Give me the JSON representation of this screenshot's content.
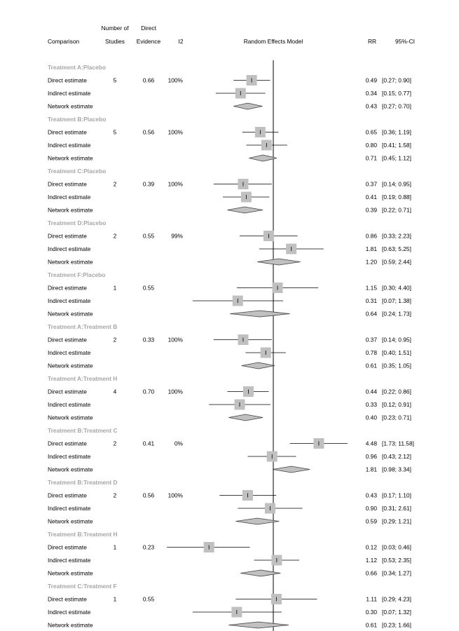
{
  "chart_data": {
    "type": "forest",
    "title": "",
    "header": {
      "comparison": "Comparison",
      "studies": [
        "Number of",
        "Studies"
      ],
      "direct": [
        "Direct",
        "Evidence"
      ],
      "i2": "I2",
      "model": "Random Effects Model",
      "rr": "RR",
      "ci": "95%-CI"
    },
    "reference_line": 1,
    "x_scale": "log",
    "colors": {
      "square": "#c0c0c0",
      "diamond": "#c0c0c0",
      "group_label": "#a6a6a6"
    },
    "groups": [
      {
        "label": "Treatment A:Placebo",
        "studies": "5",
        "direct_evidence": "0.66",
        "i2": "100%",
        "rows": [
          {
            "label": "Direct estimate",
            "kind": "direct",
            "rr": 0.49,
            "lo": 0.27,
            "hi": 0.9,
            "rr_text": "0.49",
            "ci_text": "[0.27; 0.90]"
          },
          {
            "label": "Indirect estimate",
            "kind": "indirect",
            "rr": 0.34,
            "lo": 0.15,
            "hi": 0.77,
            "rr_text": "0.34",
            "ci_text": "[0.15; 0.77]"
          },
          {
            "label": "Network estimate",
            "kind": "network",
            "rr": 0.43,
            "lo": 0.27,
            "hi": 0.7,
            "rr_text": "0.43",
            "ci_text": "[0.27; 0.70]"
          }
        ]
      },
      {
        "label": "Treatment B:Placebo",
        "studies": "5",
        "direct_evidence": "0.56",
        "i2": "100%",
        "rows": [
          {
            "label": "Direct estimate",
            "kind": "direct",
            "rr": 0.65,
            "lo": 0.36,
            "hi": 1.19,
            "rr_text": "0.65",
            "ci_text": "[0.36; 1.19]"
          },
          {
            "label": "Indirect estimate",
            "kind": "indirect",
            "rr": 0.8,
            "lo": 0.41,
            "hi": 1.58,
            "rr_text": "0.80",
            "ci_text": "[0.41; 1.58]"
          },
          {
            "label": "Network estimate",
            "kind": "network",
            "rr": 0.71,
            "lo": 0.45,
            "hi": 1.12,
            "rr_text": "0.71",
            "ci_text": "[0.45; 1.12]"
          }
        ]
      },
      {
        "label": "Treatment C:Placebo",
        "studies": "2",
        "direct_evidence": "0.39",
        "i2": "100%",
        "rows": [
          {
            "label": "Direct estimate",
            "kind": "direct",
            "rr": 0.37,
            "lo": 0.14,
            "hi": 0.95,
            "rr_text": "0.37",
            "ci_text": "[0.14; 0.95]"
          },
          {
            "label": "Indirect estimate",
            "kind": "indirect",
            "rr": 0.41,
            "lo": 0.19,
            "hi": 0.88,
            "rr_text": "0.41",
            "ci_text": "[0.19; 0.88]"
          },
          {
            "label": "Network estimate",
            "kind": "network",
            "rr": 0.39,
            "lo": 0.22,
            "hi": 0.71,
            "rr_text": "0.39",
            "ci_text": "[0.22; 0.71]"
          }
        ]
      },
      {
        "label": "Treatment D:Placebo",
        "studies": "2",
        "direct_evidence": "0.55",
        "i2": "99%",
        "rows": [
          {
            "label": "Direct estimate",
            "kind": "direct",
            "rr": 0.86,
            "lo": 0.33,
            "hi": 2.23,
            "rr_text": "0.86",
            "ci_text": "[0.33; 2.23]"
          },
          {
            "label": "Indirect estimate",
            "kind": "indirect",
            "rr": 1.81,
            "lo": 0.63,
            "hi": 5.25,
            "rr_text": "1.81",
            "ci_text": "[0.63; 5.25]"
          },
          {
            "label": "Network estimate",
            "kind": "network",
            "rr": 1.2,
            "lo": 0.59,
            "hi": 2.44,
            "rr_text": "1.20",
            "ci_text": "[0.59; 2.44]"
          }
        ]
      },
      {
        "label": "Treatment F:Placebo",
        "studies": "1",
        "direct_evidence": "0.55",
        "i2": "",
        "rows": [
          {
            "label": "Direct estimate",
            "kind": "direct",
            "rr": 1.15,
            "lo": 0.3,
            "hi": 4.4,
            "rr_text": "1.15",
            "ci_text": "[0.30; 4.40]"
          },
          {
            "label": "Indirect estimate",
            "kind": "indirect",
            "rr": 0.31,
            "lo": 0.07,
            "hi": 1.38,
            "rr_text": "0.31",
            "ci_text": "[0.07; 1.38]"
          },
          {
            "label": "Network estimate",
            "kind": "network",
            "rr": 0.64,
            "lo": 0.24,
            "hi": 1.73,
            "rr_text": "0.64",
            "ci_text": "[0.24; 1.73]"
          }
        ]
      },
      {
        "label": "Treatment A:Treatment B",
        "studies": "2",
        "direct_evidence": "0.33",
        "i2": "100%",
        "rows": [
          {
            "label": "Direct estimate",
            "kind": "direct",
            "rr": 0.37,
            "lo": 0.14,
            "hi": 0.95,
            "rr_text": "0.37",
            "ci_text": "[0.14; 0.95]"
          },
          {
            "label": "Indirect estimate",
            "kind": "indirect",
            "rr": 0.78,
            "lo": 0.4,
            "hi": 1.51,
            "rr_text": "0.78",
            "ci_text": "[0.40; 1.51]"
          },
          {
            "label": "Network estimate",
            "kind": "network",
            "rr": 0.61,
            "lo": 0.35,
            "hi": 1.05,
            "rr_text": "0.61",
            "ci_text": "[0.35; 1.05]"
          }
        ]
      },
      {
        "label": "Treatment A:Treatment H",
        "studies": "4",
        "direct_evidence": "0.70",
        "i2": "100%",
        "rows": [
          {
            "label": "Direct estimate",
            "kind": "direct",
            "rr": 0.44,
            "lo": 0.22,
            "hi": 0.86,
            "rr_text": "0.44",
            "ci_text": "[0.22; 0.86]"
          },
          {
            "label": "Indirect estimate",
            "kind": "indirect",
            "rr": 0.33,
            "lo": 0.12,
            "hi": 0.91,
            "rr_text": "0.33",
            "ci_text": "[0.12; 0.91]"
          },
          {
            "label": "Network estimate",
            "kind": "network",
            "rr": 0.4,
            "lo": 0.23,
            "hi": 0.71,
            "rr_text": "0.40",
            "ci_text": "[0.23; 0.71]"
          }
        ]
      },
      {
        "label": "Treatment B:Treatment C",
        "studies": "2",
        "direct_evidence": "0.41",
        "i2": "0%",
        "rows": [
          {
            "label": "Direct estimate",
            "kind": "direct",
            "rr": 4.48,
            "lo": 1.73,
            "hi": 11.58,
            "rr_text": "4.48",
            "ci_text": "[1.73; 11.58]"
          },
          {
            "label": "Indirect estimate",
            "kind": "indirect",
            "rr": 0.96,
            "lo": 0.43,
            "hi": 2.12,
            "rr_text": "0.96",
            "ci_text": "[0.43; 2.12]"
          },
          {
            "label": "Network estimate",
            "kind": "network",
            "rr": 1.81,
            "lo": 0.98,
            "hi": 3.34,
            "rr_text": "1.81",
            "ci_text": "[0.98; 3.34]"
          }
        ]
      },
      {
        "label": "Treatment B:Treatment D",
        "studies": "2",
        "direct_evidence": "0.56",
        "i2": "100%",
        "rows": [
          {
            "label": "Direct estimate",
            "kind": "direct",
            "rr": 0.43,
            "lo": 0.17,
            "hi": 1.1,
            "rr_text": "0.43",
            "ci_text": "[0.17; 1.10]"
          },
          {
            "label": "Indirect estimate",
            "kind": "indirect",
            "rr": 0.9,
            "lo": 0.31,
            "hi": 2.61,
            "rr_text": "0.90",
            "ci_text": "[0.31; 2.61]"
          },
          {
            "label": "Network estimate",
            "kind": "network",
            "rr": 0.59,
            "lo": 0.29,
            "hi": 1.21,
            "rr_text": "0.59",
            "ci_text": "[0.29; 1.21]"
          }
        ]
      },
      {
        "label": "Treatment B:Treatment H",
        "studies": "1",
        "direct_evidence": "0.23",
        "i2": "",
        "rows": [
          {
            "label": "Direct estimate",
            "kind": "direct",
            "rr": 0.12,
            "lo": 0.03,
            "hi": 0.46,
            "rr_text": "0.12",
            "ci_text": "[0.03; 0.46]"
          },
          {
            "label": "Indirect estimate",
            "kind": "indirect",
            "rr": 1.12,
            "lo": 0.53,
            "hi": 2.35,
            "rr_text": "1.12",
            "ci_text": "[0.53; 2.35]"
          },
          {
            "label": "Network estimate",
            "kind": "network",
            "rr": 0.66,
            "lo": 0.34,
            "hi": 1.27,
            "rr_text": "0.66",
            "ci_text": "[0.34; 1.27]"
          }
        ]
      },
      {
        "label": "Treatment C:Treatment F",
        "studies": "1",
        "direct_evidence": "0.55",
        "i2": "",
        "rows": [
          {
            "label": "Direct estimate",
            "kind": "direct",
            "rr": 1.11,
            "lo": 0.29,
            "hi": 4.23,
            "rr_text": "1.11",
            "ci_text": "[0.29; 4.23]"
          },
          {
            "label": "Indirect estimate",
            "kind": "indirect",
            "rr": 0.3,
            "lo": 0.07,
            "hi": 1.32,
            "rr_text": "0.30",
            "ci_text": "[0.07; 1.32]"
          },
          {
            "label": "Network estimate",
            "kind": "network",
            "rr": 0.61,
            "lo": 0.23,
            "hi": 1.66,
            "rr_text": "0.61",
            "ci_text": "[0.23; 1.66]"
          }
        ]
      }
    ]
  }
}
